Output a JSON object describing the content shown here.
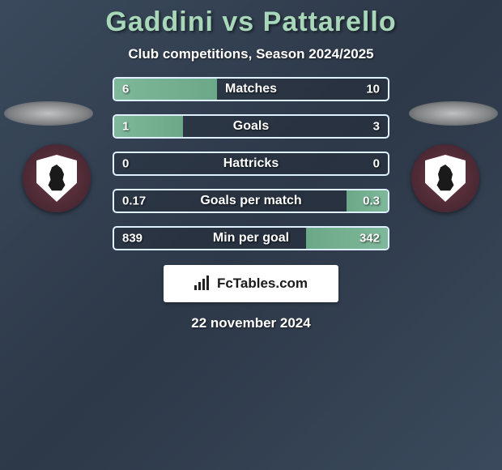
{
  "title": "Gaddini vs Pattarello",
  "subtitle": "Club competitions, Season 2024/2025",
  "date": "22 november 2024",
  "brand": "FcTables.com",
  "colors": {
    "title": "#a8d8b9",
    "bar_fill": "#7fb89a",
    "bar_border": "#dff0ff",
    "text": "#ffffff",
    "badge_bg": "#5a3640",
    "brand_bg": "#ffffff"
  },
  "stats": [
    {
      "label": "Matches",
      "left_val": "6",
      "right_val": "10",
      "left_pct": 37.5,
      "right_pct": 0
    },
    {
      "label": "Goals",
      "left_val": "1",
      "right_val": "3",
      "left_pct": 25,
      "right_pct": 0
    },
    {
      "label": "Hattricks",
      "left_val": "0",
      "right_val": "0",
      "left_pct": 0,
      "right_pct": 0
    },
    {
      "label": "Goals per match",
      "left_val": "0.17",
      "right_val": "0.3",
      "left_pct": 0,
      "right_pct": 15
    },
    {
      "label": "Min per goal",
      "left_val": "839",
      "right_val": "342",
      "left_pct": 0,
      "right_pct": 30
    }
  ]
}
